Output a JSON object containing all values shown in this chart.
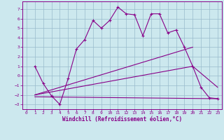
{
  "xlabel": "Windchill (Refroidissement éolien,°C)",
  "bg_color": "#cce8ee",
  "line_color": "#880088",
  "grid_color": "#99bbcc",
  "xlim": [
    -0.5,
    23.5
  ],
  "ylim": [
    -3.5,
    7.8
  ],
  "xticks": [
    0,
    1,
    2,
    3,
    4,
    5,
    6,
    7,
    8,
    9,
    10,
    11,
    12,
    13,
    14,
    15,
    16,
    17,
    18,
    19,
    20,
    21,
    22,
    23
  ],
  "yticks": [
    -3,
    -2,
    -1,
    0,
    1,
    2,
    3,
    4,
    5,
    6,
    7
  ],
  "line1_x": [
    1,
    2,
    3,
    4,
    5,
    6,
    7,
    8,
    9,
    10,
    11,
    12,
    13,
    14,
    15,
    16,
    17,
    18,
    19,
    20,
    21,
    22,
    23
  ],
  "line1_y": [
    1.0,
    -0.8,
    -2.1,
    -3.0,
    -0.3,
    2.8,
    3.8,
    5.8,
    5.0,
    5.8,
    7.2,
    6.5,
    6.4,
    4.2,
    6.5,
    6.5,
    4.5,
    4.8,
    3.0,
    1.0,
    -1.2,
    -2.3,
    -2.4
  ],
  "line2_x": [
    1,
    23
  ],
  "line2_y": [
    -2.2,
    -2.4
  ],
  "line3_x": [
    1,
    20,
    23
  ],
  "line3_y": [
    -2.0,
    1.0,
    -1.2
  ]
}
